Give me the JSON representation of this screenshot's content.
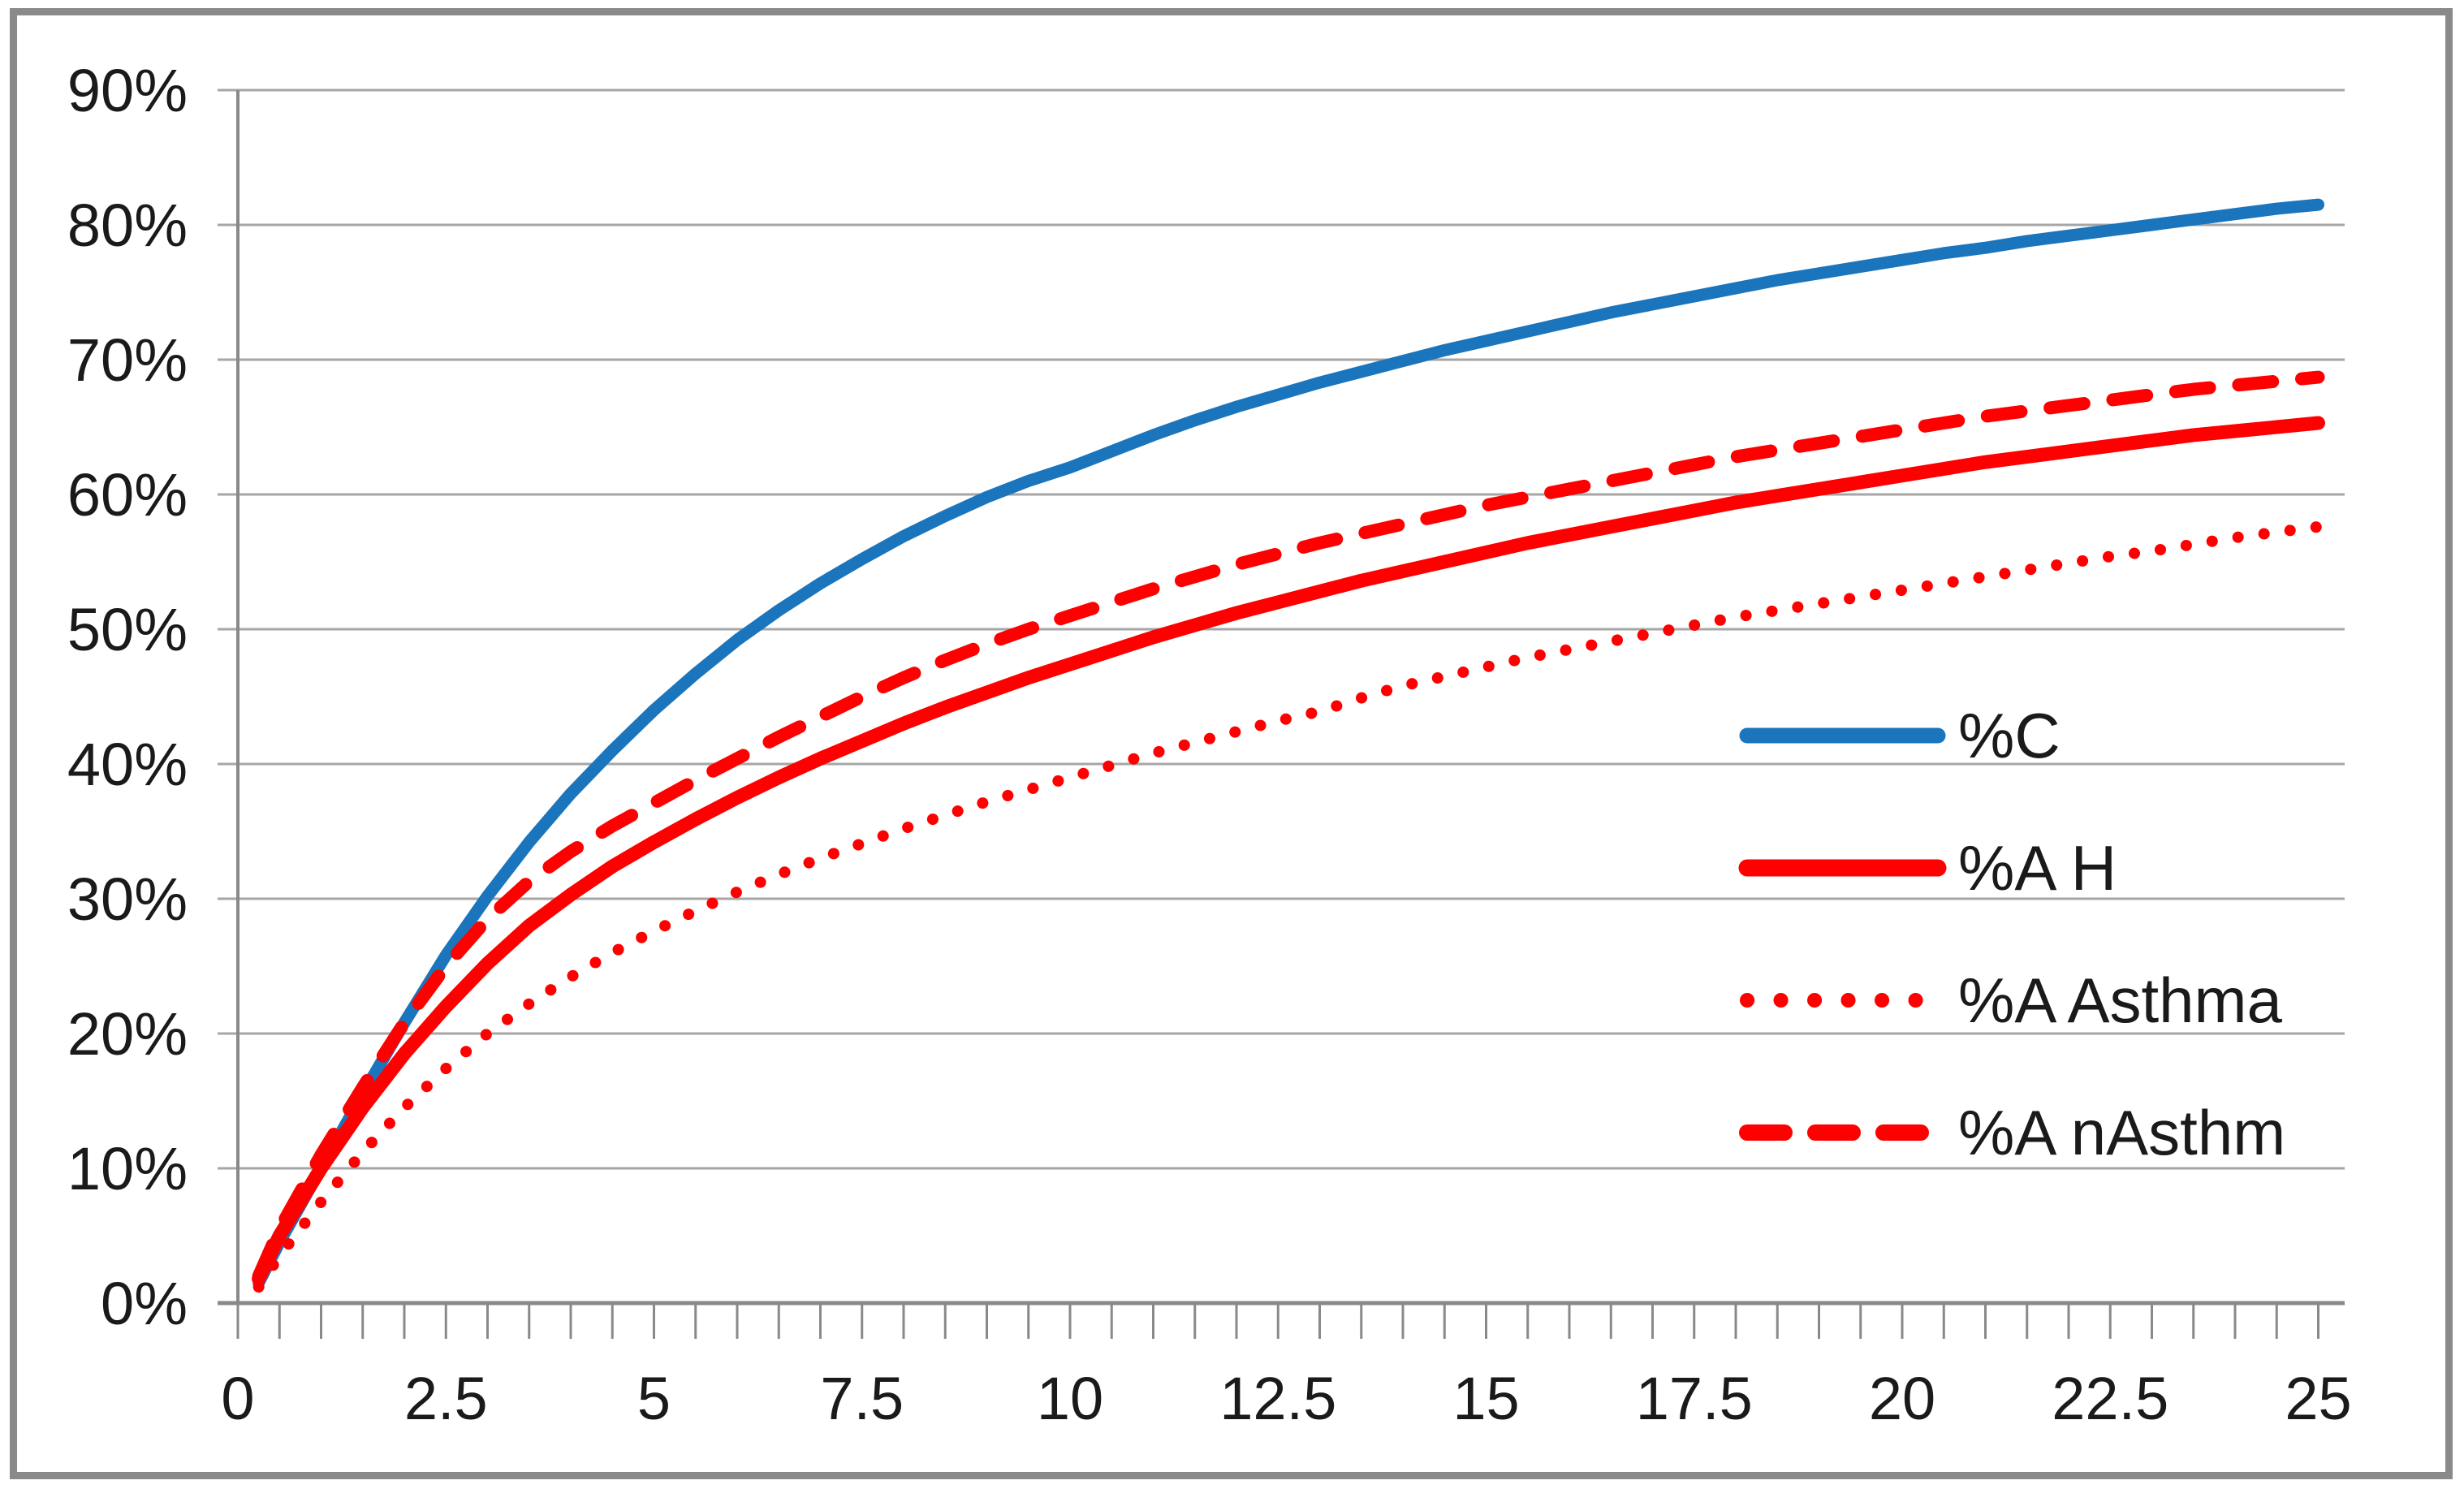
{
  "chart_data": {
    "type": "line",
    "title": "",
    "xlabel": "",
    "ylabel": "",
    "xlim": [
      0,
      25
    ],
    "ylim": [
      0,
      90
    ],
    "grid": true,
    "legend_position": "middle-right",
    "x_tick_labels": [
      "0",
      "2.5",
      "5",
      "7.5",
      "10",
      "12.5",
      "15",
      "17.5",
      "20",
      "22.5",
      "25"
    ],
    "x_tick_values": [
      0,
      2.5,
      5,
      7.5,
      10,
      12.5,
      15,
      17.5,
      20,
      22.5,
      25
    ],
    "minor_tick_step": 0.5,
    "y_tick_labels": [
      "0%",
      "10%",
      "20%",
      "30%",
      "40%",
      "50%",
      "60%",
      "70%",
      "80%",
      "90%"
    ],
    "y_tick_values": [
      0,
      10,
      20,
      30,
      40,
      50,
      60,
      70,
      80,
      90
    ],
    "colors": {
      "blue_series": "#1b75bc",
      "red_series": "#ff0000",
      "gridline": "#a6a6a6",
      "axis": "#898989",
      "text": "#1a1a1a",
      "frame": "#8a8a8a"
    },
    "x": [
      0.25,
      0.5,
      1,
      1.5,
      2,
      2.5,
      3,
      3.5,
      4,
      4.5,
      5,
      5.5,
      6,
      6.5,
      7,
      7.5,
      8,
      8.5,
      9,
      9.5,
      10,
      10.5,
      11,
      11.5,
      12,
      12.5,
      13,
      13.5,
      14,
      14.5,
      15,
      15.5,
      16,
      16.5,
      17,
      17.5,
      18,
      18.5,
      19,
      19.5,
      20,
      20.5,
      21,
      21.5,
      22,
      22.5,
      23,
      23.5,
      24,
      24.5,
      25
    ],
    "series": [
      {
        "name": "%C",
        "color": "#1b75bc",
        "style": "solid",
        "width": 15,
        "y": [
          1.5,
          4.5,
          10,
          15.5,
          20.8,
          25.8,
          30.2,
          34.2,
          37.8,
          41,
          44,
          46.7,
          49.2,
          51.4,
          53.4,
          55.2,
          56.9,
          58.4,
          59.8,
          61,
          62,
          63.2,
          64.4,
          65.5,
          66.5,
          67.4,
          68.3,
          69.1,
          69.9,
          70.7,
          71.4,
          72.1,
          72.8,
          73.5,
          74.1,
          74.7,
          75.3,
          75.9,
          76.4,
          76.9,
          77.4,
          77.9,
          78.3,
          78.8,
          79.2,
          79.6,
          80,
          80.4,
          80.8,
          81.2,
          81.5
        ]
      },
      {
        "name": "%A H",
        "color": "#ff0000",
        "style": "solid",
        "width": 17,
        "y": [
          1.8,
          5,
          10,
          14.5,
          18.5,
          22,
          25.2,
          28,
          30.3,
          32.4,
          34.2,
          35.9,
          37.5,
          39,
          40.4,
          41.7,
          43,
          44.2,
          45.3,
          46.4,
          47.4,
          48.4,
          49.4,
          50.3,
          51.2,
          52,
          52.8,
          53.6,
          54.3,
          55,
          55.7,
          56.4,
          57,
          57.6,
          58.2,
          58.8,
          59.4,
          59.9,
          60.4,
          60.9,
          61.4,
          61.9,
          62.4,
          62.8,
          63.2,
          63.6,
          64,
          64.4,
          64.7,
          65,
          65.3
        ]
      },
      {
        "name": "%A Asthma",
        "color": "#ff0000",
        "style": "dotted",
        "width": 14,
        "y": [
          1.2,
          3.5,
          7.5,
          11.2,
          14.5,
          17.4,
          20,
          22.2,
          24.2,
          26,
          27.6,
          29.1,
          30.5,
          31.8,
          33,
          34.1,
          35.2,
          36.2,
          37.2,
          38.1,
          39,
          39.9,
          40.8,
          41.6,
          42.4,
          43.2,
          43.9,
          44.9,
          45.8,
          46.5,
          47.2,
          47.9,
          48.5,
          49.1,
          49.7,
          50.3,
          50.9,
          51.4,
          51.9,
          52.4,
          52.9,
          53.4,
          53.9,
          54.4,
          54.9,
          55.4,
          55.8,
          56.3,
          56.8,
          57.2,
          57.6
        ]
      },
      {
        "name": "%A nAsthm",
        "color": "#ff0000",
        "style": "dashed",
        "width": 16,
        "y": [
          2,
          5.5,
          11,
          16,
          20.8,
          25,
          28.5,
          31.3,
          33.5,
          35.4,
          37.1,
          38.8,
          40.4,
          42,
          43.5,
          45,
          46.4,
          47.7,
          48.9,
          50,
          51,
          52,
          53,
          53.9,
          54.8,
          55.6,
          56.4,
          57.1,
          57.8,
          58.5,
          59.2,
          59.8,
          60.4,
          61,
          61.6,
          62.2,
          62.8,
          63.3,
          63.8,
          64.3,
          64.8,
          65.3,
          65.8,
          66.2,
          66.6,
          67,
          67.4,
          67.8,
          68.1,
          68.4,
          68.7
        ]
      }
    ],
    "legend": [
      {
        "label": "%C",
        "series_index": 0
      },
      {
        "label": "%A H",
        "series_index": 1
      },
      {
        "label": "%A Asthma",
        "series_index": 2
      },
      {
        "label": "%A nAsthm",
        "series_index": 3
      }
    ]
  }
}
